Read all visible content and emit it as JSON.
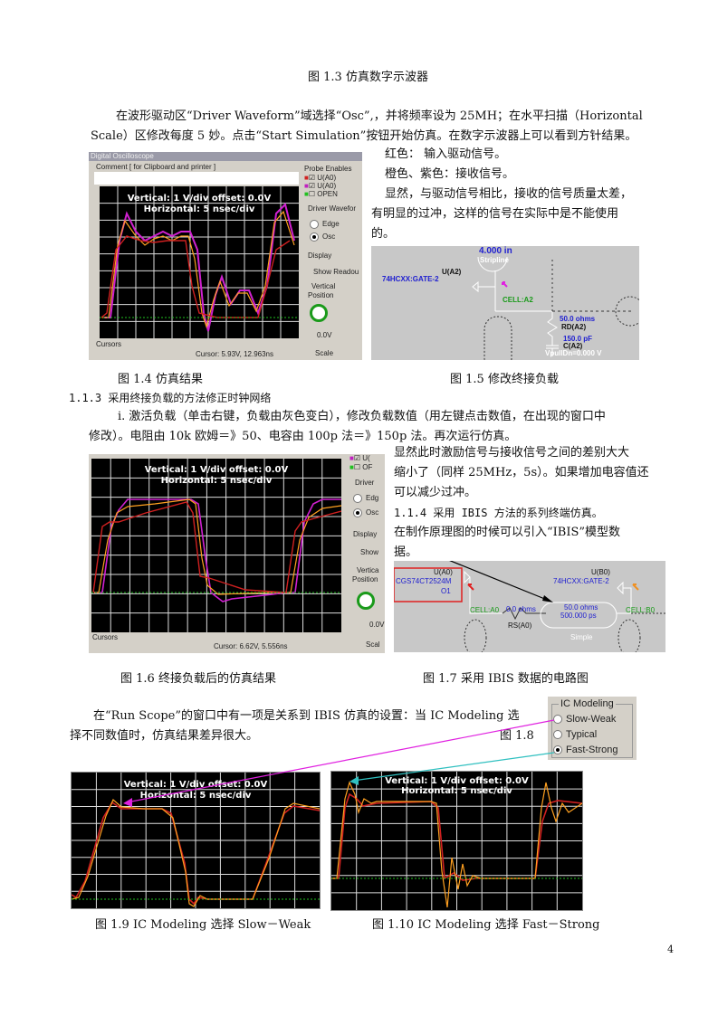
{
  "fig13_caption": "图 1.3  仿真数字示波器",
  "para1": [
    "在波形驱动区“Driver Waveform”域选择“Osc”,，并将频率设为 25MH；在水平扫描（Horizontal",
    "Scale）区修改每度 5 妙。点击“Start Simulation”按钮开始仿真。在数字示波器上可以看到方针结果。"
  ],
  "side1": [
    "红色：        输入驱动信号。",
    "橙色、紫色：接收信号。",
    "显然，与驱动信号相比，接收的信号质量太差，",
    "有明显的过冲，这样的信号在实际中是不能使用",
    "的。"
  ],
  "scope1": {
    "title": "Digital Oscilloscope",
    "comment": "Comment [ for Clipboard and printer ]",
    "vertical": "Vertical: 1 V/div   offset:   0.0V",
    "horizontal": "Horizontal: 5 nsec/div",
    "probe_label": "Probe Enables",
    "probes": [
      "U(A0)",
      "U(A0)",
      "OPEN"
    ],
    "driver": "Driver Wavefor",
    "edge": "Edge",
    "osc": "Osc",
    "display": "Display",
    "show": "Show Readou",
    "vpos": "Vertical",
    "position": "Position",
    "volt": "0.0V",
    "cursors": "Cursors",
    "cursor_val": "Cursor: 5.93V, 12.963ns",
    "scale": "Scale"
  },
  "sch15": {
    "stripline_len": "4.000 in",
    "stripline": "Stripline",
    "u": "U(A2)",
    "gate": "74HCXX:GATE-2",
    "cell": "CELL:A2",
    "ohms": "50.0 ohms",
    "rd": "RD(A2)",
    "pf": "150.0 pF",
    "c": "C(A2)",
    "vpull": "VpullDn=0.000 V"
  },
  "cap14": "图 1.4       仿真结果",
  "cap15": "图 1.5    修改终接负载",
  "h113": "1.1.3 采用终接负载的方法修正时钟网络",
  "para2": [
    "i. 激活负载（单击右键，负载由灰色变白），修改负载数值（用左键点击数值，在出现的窗口中",
    "修改）。电阻由 10k 欧姆＝》50、电容由 100p 法＝》150p 法。再次运行仿真。"
  ],
  "side2": [
    "显然此时激励信号与接收信号之间的差别大大",
    "缩小了（同样 25MHz，5s）。如果增加电容值还",
    "可以减少过冲。"
  ],
  "h114": "1.1.4 采用 IBIS 方法的系列终端仿真。",
  "side3": [
    "在制作原理图的时候可以引入“IBIS”模型数",
    "据。"
  ],
  "scope2": {
    "probes": [
      "U(",
      "OF"
    ],
    "vertical": "Vertical: 1 V/div   offset:   0.0V",
    "horizontal": "Horizontal: 5 nsec/div",
    "driver": "Driver",
    "edge": "Edg",
    "osc": "Osc",
    "display": "Display",
    "show": "Show",
    "vpos": "Vertica",
    "position": "Position",
    "volt": "0.0V",
    "cursors": "Cursors",
    "cursor_val": "Cursor: 6.62V, 5.556ns",
    "scale": "Scal"
  },
  "sch17": {
    "ua0": "U(A0)",
    "cgs": "CGS74CT2524M",
    "o1": "O1",
    "ub0": "U(B0)",
    "gate": "74HCXX:GATE-2",
    "cella0": "CELL:A0",
    "r": "0.0 ohms",
    "rs": "RS(A0)",
    "z": "50.0 ohms",
    "td": "500.000 ps",
    "simple": "Simple",
    "cellb0": "CELL:B0"
  },
  "cap16": "图 1.6    终接负载后的仿真结果",
  "cap17": "图 1.7 采用 IBIS 数据的电路图",
  "para3": [
    "在“Run Scope”的窗口中有一项是关系到 IBIS 仿真的设置：当 IC Modeling 选",
    "择不同数值时，仿真结果差异很大。"
  ],
  "fig18": "图  1.8",
  "icmodel": {
    "title": "IC Modeling",
    "options": [
      "Slow-Weak",
      "Typical",
      "Fast-Strong"
    ],
    "selected": "Fast-Strong"
  },
  "scope3": {
    "vertical": "Vertical: 1 V/div   offset:   0.0V",
    "horizontal": "Horizontal: 5 nsec/div"
  },
  "scope4": {
    "vertical": "Vertical: 1 V/div   offset:   0.0V",
    "horizontal": "Horizontal: 5 nsec/div"
  },
  "cap19": "图 1.9 IC Modeling 选择 Slow－Weak",
  "cap110": "图 1.10 IC Modeling 选择 Fast－Strong",
  "page_number": "4"
}
